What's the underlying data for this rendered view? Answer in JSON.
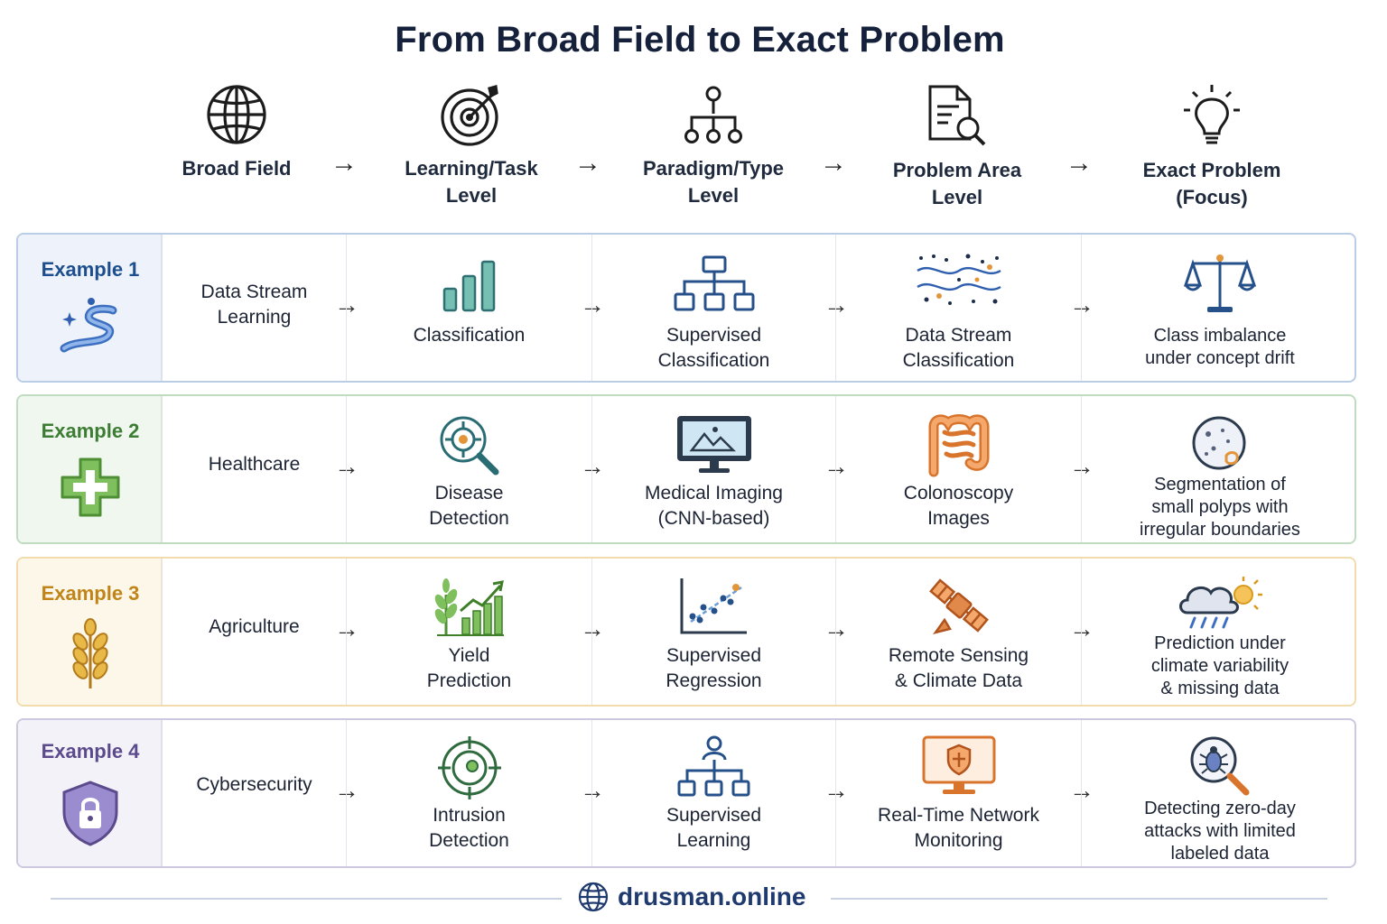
{
  "title": "From Broad Field to Exact Problem",
  "header": {
    "broad_field": "Broad Field",
    "learning_task": "Learning/Task\nLevel",
    "paradigm_type": "Paradigm/Type\nLevel",
    "problem_area": "Problem Area\nLevel",
    "exact_problem": "Exact Problem\n(Focus)",
    "arrow": "→"
  },
  "examples": [
    {
      "label": "Example 1",
      "field": "Data Stream\nLearning",
      "task": "Classification",
      "paradigm": "Supervised\nClassification",
      "area": "Data Stream\nClassification",
      "problem": "Class imbalance\nunder concept drift"
    },
    {
      "label": "Example 2",
      "field": "Healthcare",
      "task": "Disease\nDetection",
      "paradigm": "Medical Imaging\n(CNN-based)",
      "area": "Colonoscopy\nImages",
      "problem": "Segmentation of\nsmall polyps with\nirregular boundaries"
    },
    {
      "label": "Example 3",
      "field": "Agriculture",
      "task": "Yield\nPrediction",
      "paradigm": "Supervised\nRegression",
      "area": "Remote Sensing\n& Climate Data",
      "problem": "Prediction under\nclimate variability\n& missing data"
    },
    {
      "label": "Example 4",
      "field": "Cybersecurity",
      "task": "Intrusion\nDetection",
      "paradigm": "Supervised\nLearning",
      "area": "Real-Time Network\nMonitoring",
      "problem": "Detecting zero-day\nattacks with limited\nlabeled data"
    }
  ],
  "footer": {
    "brand": "drusman.online"
  }
}
